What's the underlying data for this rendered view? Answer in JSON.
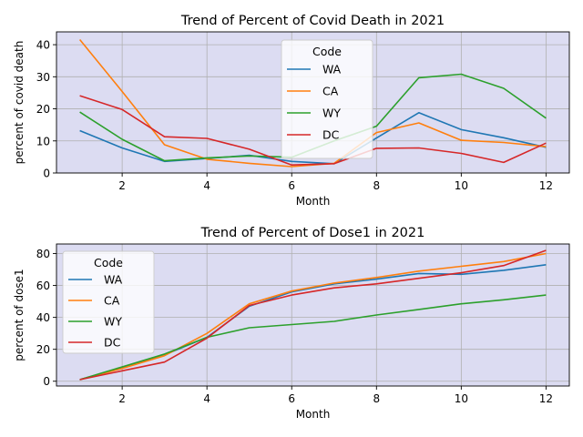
{
  "chart_data": [
    {
      "type": "line",
      "title": "Trend of Percent of Covid Death in 2021",
      "xlabel": "Month",
      "ylabel": "percent of covid death",
      "xlim": [
        0.45,
        12.55
      ],
      "ylim": [
        0,
        44
      ],
      "xticks": [
        2,
        4,
        6,
        8,
        10,
        12
      ],
      "yticks": [
        0,
        10,
        20,
        30,
        40
      ],
      "grid": true,
      "background": "#dcdcf2",
      "legend": {
        "title": "Code",
        "placement": "upper center"
      },
      "x": [
        1,
        2,
        3,
        4,
        5,
        6,
        7,
        8,
        9,
        10,
        11,
        12
      ],
      "series": [
        {
          "name": "WA",
          "color": "#1f77b4",
          "values": [
            13.2,
            7.8,
            3.6,
            4.5,
            5.5,
            3.6,
            2.9,
            10.9,
            18.8,
            13.5,
            11.0,
            8.0
          ]
        },
        {
          "name": "CA",
          "color": "#ff7f0e",
          "values": [
            41.6,
            25.4,
            8.8,
            4.3,
            3.0,
            2.0,
            3.0,
            12.6,
            15.6,
            10.2,
            9.5,
            8.2
          ]
        },
        {
          "name": "WY",
          "color": "#2ca02c",
          "values": [
            19.0,
            10.5,
            3.8,
            4.7,
            5.3,
            4.9,
            10.0,
            14.6,
            29.7,
            30.8,
            26.4,
            17.1
          ]
        },
        {
          "name": "DC",
          "color": "#d62728",
          "values": [
            24.1,
            19.8,
            11.3,
            10.8,
            7.4,
            2.5,
            2.9,
            7.7,
            7.8,
            6.1,
            3.3,
            9.3
          ]
        }
      ]
    },
    {
      "type": "line",
      "title": "Trend of Percent of Dose1 in 2021",
      "xlabel": "Month",
      "ylabel": "percent of dose1",
      "xlim": [
        0.45,
        12.55
      ],
      "ylim": [
        -3,
        86
      ],
      "xticks": [
        2,
        4,
        6,
        8,
        10,
        12
      ],
      "yticks": [
        0,
        20,
        40,
        60,
        80
      ],
      "grid": true,
      "background": "#dcdcf2",
      "legend": {
        "title": "Code",
        "placement": "upper left"
      },
      "x": [
        1,
        2,
        3,
        4,
        5,
        6,
        7,
        8,
        9,
        10,
        11,
        12
      ],
      "series": [
        {
          "name": "WA",
          "color": "#1f77b4",
          "values": [
            1.0,
            8.5,
            16.5,
            27.5,
            47.0,
            56.0,
            61.0,
            64.0,
            67.5,
            67.0,
            69.5,
            73.0
          ]
        },
        {
          "name": "CA",
          "color": "#ff7f0e",
          "values": [
            1.0,
            8.0,
            16.0,
            30.0,
            48.5,
            56.5,
            61.5,
            65.0,
            69.0,
            72.0,
            75.0,
            80.0
          ]
        },
        {
          "name": "WY",
          "color": "#2ca02c",
          "values": [
            1.0,
            9.0,
            17.0,
            27.5,
            33.5,
            35.5,
            37.5,
            41.5,
            45.0,
            48.5,
            51.0,
            54.0
          ]
        },
        {
          "name": "DC",
          "color": "#d62728",
          "values": [
            1.0,
            6.5,
            12.0,
            27.0,
            47.5,
            54.0,
            58.5,
            61.0,
            64.5,
            68.0,
            72.5,
            82.0
          ]
        }
      ]
    }
  ]
}
